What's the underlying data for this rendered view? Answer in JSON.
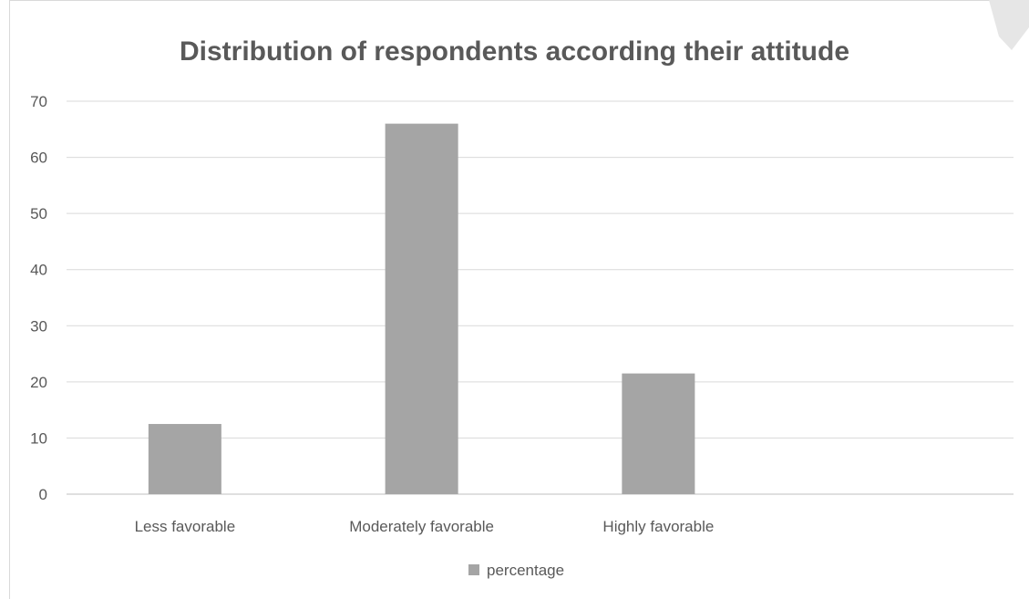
{
  "chart_data": {
    "type": "bar",
    "title": "Distribution of respondents according their attitude",
    "categories": [
      "Less favorable",
      "Moderately favorable",
      "Highly favorable",
      ""
    ],
    "series": [
      {
        "name": "percentage",
        "values": [
          12.5,
          66,
          21.5,
          null
        ],
        "color": "#a5a5a5"
      }
    ],
    "ylim": [
      0,
      70
    ],
    "yticks": [
      0,
      10,
      20,
      30,
      40,
      50,
      60,
      70
    ],
    "grid": true,
    "legend": "bottom-center",
    "xlabel": "",
    "ylabel": ""
  }
}
